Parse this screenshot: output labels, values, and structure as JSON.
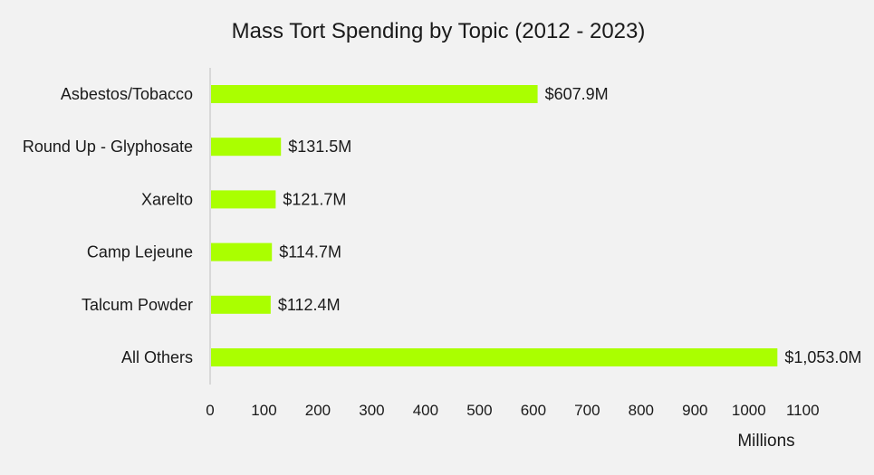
{
  "chart_data": {
    "type": "bar",
    "orientation": "horizontal",
    "title": "Mass Tort Spending  by Topic (2012 - 2023)",
    "xlabel": "Millions",
    "ylabel": "",
    "categories": [
      "Asbestos/Tobacco",
      "Round Up - Glyphosate",
      "Xarelto",
      "Camp Lejeune",
      "Talcum Powder",
      "All Others"
    ],
    "values": [
      607.9,
      131.5,
      121.7,
      114.7,
      112.4,
      1053.0
    ],
    "data_labels": [
      "$607.9M",
      "$131.5M",
      "$121.7M",
      "$114.7M",
      "$112.4M",
      "$1,053.0M"
    ],
    "xlim": [
      0,
      1100
    ],
    "x_ticks": [
      0,
      100,
      200,
      300,
      400,
      500,
      600,
      700,
      800,
      900,
      1000,
      1100
    ],
    "bar_color": "#aaff00",
    "axis_color": "#d0d0d0",
    "grid": false,
    "legend": "none"
  }
}
